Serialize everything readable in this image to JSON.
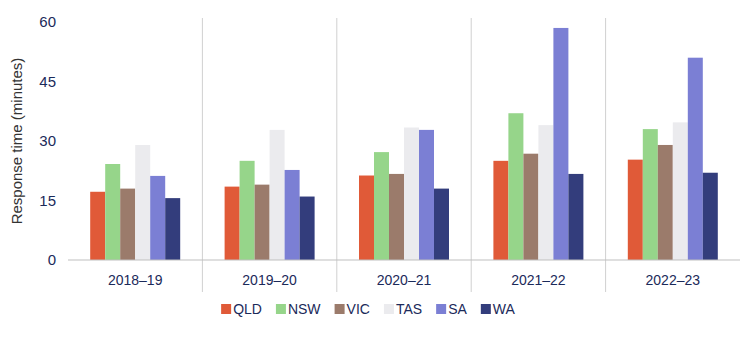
{
  "chart_data": {
    "type": "bar",
    "y_label": "Response time (minutes)",
    "categories": [
      "2018–19",
      "2019–20",
      "2020–21",
      "2021–22",
      "2022–23"
    ],
    "series": [
      {
        "name": "QLD",
        "color": "#e05a38",
        "values": [
          17.2,
          18.5,
          21.3,
          25,
          25.3
        ]
      },
      {
        "name": "NSW",
        "color": "#96d58a",
        "values": [
          24.2,
          25,
          27.2,
          37,
          33
        ]
      },
      {
        "name": "VIC",
        "color": "#9b7b6b",
        "values": [
          18,
          19,
          21.7,
          26.8,
          29
        ]
      },
      {
        "name": "TAS",
        "color": "#ebebee",
        "values": [
          29,
          32.8,
          33.4,
          34,
          34.7
        ]
      },
      {
        "name": "SA",
        "color": "#7b7fd4",
        "values": [
          21.2,
          22.7,
          32.8,
          58.5,
          51
        ]
      },
      {
        "name": "WA",
        "color": "#333d7c",
        "values": [
          15.6,
          16,
          18,
          21.7,
          22
        ]
      }
    ],
    "ylim": [
      0,
      60
    ],
    "yticks": [
      0,
      15,
      30,
      45,
      60
    ],
    "grid": false,
    "legend": "bottom"
  }
}
